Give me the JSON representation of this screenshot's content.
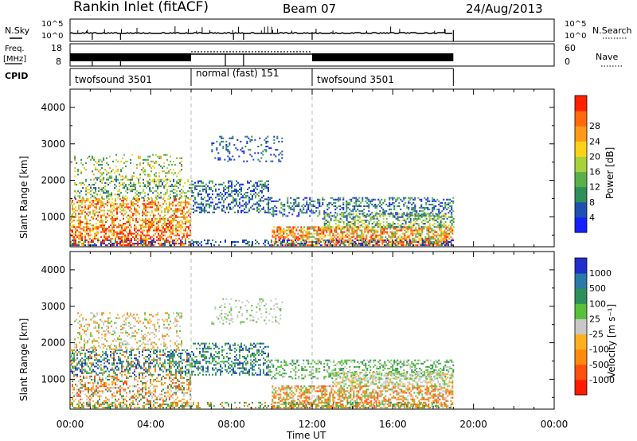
{
  "header": {
    "station": "Rankin Inlet (fitACF)",
    "beam": "Beam 07",
    "date": "24/Aug/2013"
  },
  "side_labels": {
    "nsky": "N.Sky",
    "freq_line1": "Freq.",
    "freq_line2": "[MHz]",
    "cpid": "CPID",
    "nsearch": "N.Search",
    "nave": "Nave"
  },
  "noise_axis": {
    "left_ticks": [
      "10^5",
      "10^0"
    ],
    "right_ticks": [
      "10^5",
      "10^0"
    ]
  },
  "freq_axis": {
    "left_ticks": [
      "18",
      "8"
    ],
    "right_ticks": [
      "60",
      "0"
    ]
  },
  "cpid_segments": [
    {
      "label": "twofsound 3501",
      "start_hour": 0,
      "end_hour": 6
    },
    {
      "label": "normal (fast) 151",
      "start_hour": 6,
      "end_hour": 12
    },
    {
      "label": "twofsound 3501",
      "start_hour": 12,
      "end_hour": 19
    }
  ],
  "chart_data": [
    {
      "type": "heatmap",
      "name": "power-panel",
      "ylabel": "Slant Range [km]",
      "xlabel": "Time UT",
      "x_ticks": [
        "00:00",
        "04:00",
        "08:00",
        "12:00",
        "16:00",
        "20:00",
        "00:00"
      ],
      "y_ticks": [
        "1000",
        "2000",
        "3000",
        "4000"
      ],
      "xlim_hours": [
        0,
        24
      ],
      "ylim_km": [
        180,
        4500
      ],
      "data_end_hour": 19,
      "colorbar": {
        "label": "Power [dB]",
        "ticks": [
          "4",
          "8",
          "12",
          "16",
          "20",
          "24",
          "28"
        ],
        "colors": [
          "#1420ff",
          "#1f4fb0",
          "#2f8f5a",
          "#5cb04a",
          "#a8d23c",
          "#ffd21a",
          "#ff9a1a",
          "#ff6a10",
          "#ff2000"
        ]
      }
    },
    {
      "type": "heatmap",
      "name": "velocity-panel",
      "ylabel": "Slant Range [km]",
      "xlabel": "Time UT",
      "x_ticks": [
        "00:00",
        "04:00",
        "08:00",
        "12:00",
        "16:00",
        "20:00",
        "00:00"
      ],
      "y_ticks": [
        "1000",
        "2000",
        "3000",
        "4000"
      ],
      "xlim_hours": [
        0,
        24
      ],
      "ylim_km": [
        180,
        4500
      ],
      "data_end_hour": 19,
      "colorbar": {
        "label": "Velocity [m s⁻¹]",
        "ticks": [
          "1000",
          "500",
          "100",
          "25",
          "-25",
          "-100",
          "-500",
          "-1000"
        ],
        "colors": [
          "#2030c8",
          "#2a7aa8",
          "#2f8f5a",
          "#58c03a",
          "#c8c8c8",
          "#ffb020",
          "#ff8a10",
          "#ff5010",
          "#ff1a00"
        ]
      }
    }
  ],
  "x_axis_title": "Time UT"
}
